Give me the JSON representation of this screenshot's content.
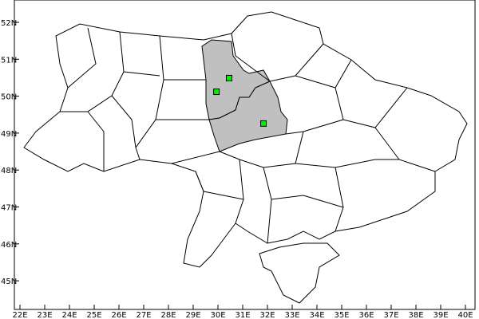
{
  "map": {
    "lon_labels": [
      "22E",
      "23E",
      "24E",
      "25E",
      "26E",
      "27E",
      "28E",
      "29E",
      "30E",
      "31E",
      "32E",
      "33E",
      "34E",
      "35E",
      "36E",
      "37E",
      "38E",
      "39E",
      "40E"
    ],
    "lat_labels": [
      "52N",
      "51N",
      "50N",
      "49N",
      "48N",
      "47N",
      "46N",
      "45N"
    ],
    "lon_range": [
      22,
      40
    ],
    "lat_range": [
      45,
      52
    ],
    "highlight_fill": "#c0c0c0",
    "marker_color": "#00ee00",
    "points": [
      {
        "lon": 30.45,
        "lat": 50.49
      },
      {
        "lon": 29.94,
        "lat": 50.12
      },
      {
        "lon": 31.84,
        "lat": 49.26
      }
    ]
  }
}
